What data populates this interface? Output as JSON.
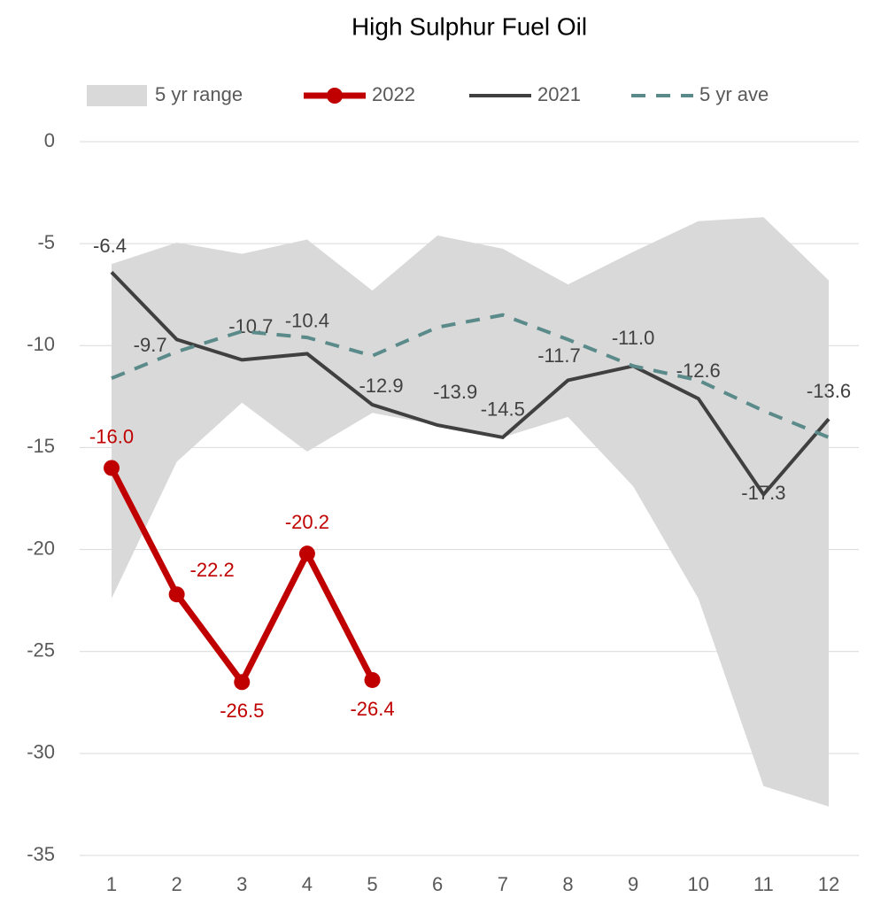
{
  "chart_data": {
    "type": "line",
    "title": "High Sulphur Fuel Oil",
    "categories": [
      "1",
      "2",
      "3",
      "4",
      "5",
      "6",
      "7",
      "8",
      "9",
      "10",
      "11",
      "12"
    ],
    "ylim": [
      -35,
      0
    ],
    "yticks": [
      0,
      -5,
      -10,
      -15,
      -20,
      -25,
      -30,
      -35
    ],
    "grid": true,
    "legend": "top",
    "range": {
      "name": "5 yr range",
      "color": "#d9d9d9",
      "low": [
        -22.4,
        -15.7,
        -12.8,
        -15.2,
        -13.3,
        -13.9,
        -14.5,
        -13.5,
        -16.9,
        -22.4,
        -31.6,
        -32.6
      ],
      "high": [
        -6.0,
        -4.95,
        -5.5,
        -4.8,
        -7.3,
        -4.6,
        -5.25,
        -7.0,
        -5.4,
        -3.9,
        -3.7,
        -6.8
      ]
    },
    "series": [
      {
        "name": "2022",
        "color": "#c00000",
        "values": [
          -16.0,
          -22.2,
          -26.5,
          -20.2,
          -26.4,
          null,
          null,
          null,
          null,
          null,
          null,
          null
        ],
        "value_labels": [
          "-16.0",
          "-22.2",
          "-26.5",
          "-20.2",
          "-26.4",
          null,
          null,
          null,
          null,
          null,
          null,
          null
        ]
      },
      {
        "name": "2021",
        "color": "#404040",
        "values": [
          -6.4,
          -9.7,
          -10.7,
          -10.4,
          -12.9,
          -13.9,
          -14.5,
          -11.7,
          -11.0,
          -12.6,
          -17.3,
          -13.6
        ],
        "value_labels": [
          "-6.4",
          "-9.7",
          "-10.7",
          "-10.4",
          "-12.9",
          "-13.9",
          "-14.5",
          "-11.7",
          "-11.0",
          "-12.6",
          "-17.3",
          "-13.6"
        ]
      },
      {
        "name": "5 yr ave",
        "color": "#5b8a8a",
        "dashed": true,
        "values": [
          -11.6,
          -10.3,
          -9.3,
          -9.6,
          -10.5,
          -9.1,
          -8.5,
          -9.7,
          -11.0,
          -11.7,
          -13.2,
          -14.5
        ]
      }
    ]
  }
}
